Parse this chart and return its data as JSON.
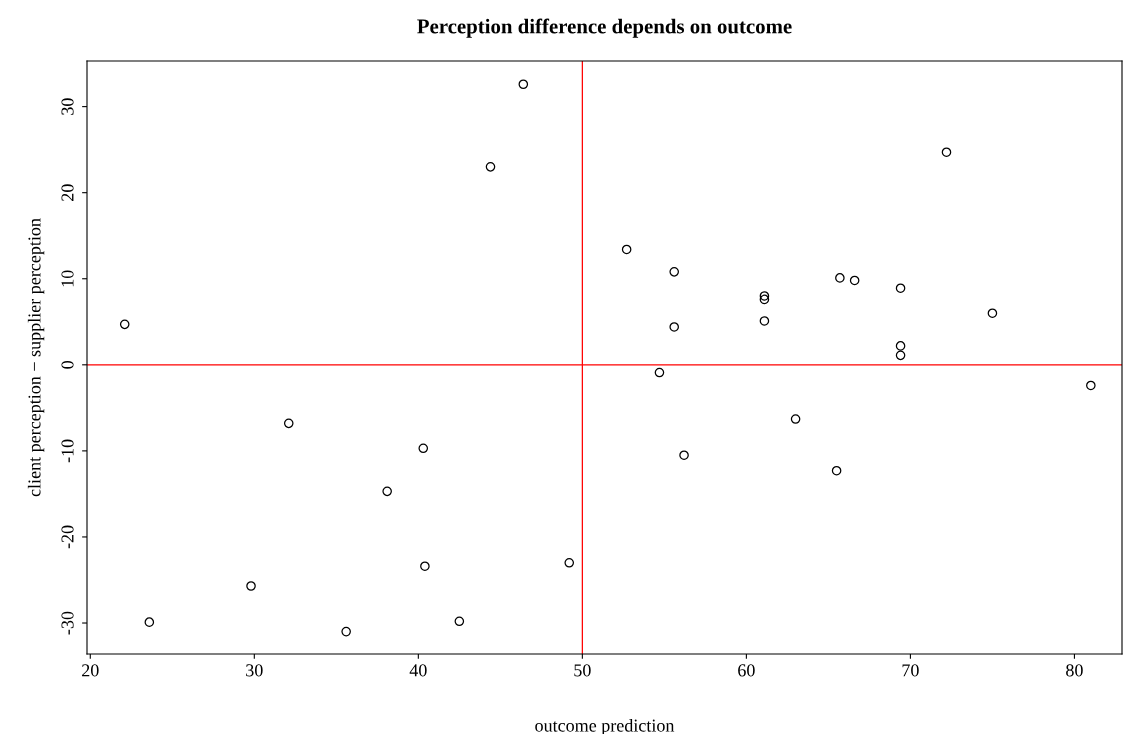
{
  "chart_data": {
    "type": "scatter",
    "title": "Perception difference depends on outcome",
    "xlabel": "outcome prediction",
    "ylabel": "client perception − supplier perception",
    "x": [
      22.1,
      23.6,
      29.8,
      32.1,
      35.6,
      38.1,
      40.3,
      40.4,
      42.5,
      44.4,
      46.4,
      49.2,
      52.7,
      54.7,
      55.6,
      55.6,
      56.2,
      61.1,
      61.1,
      61.1,
      63.0,
      65.5,
      65.7,
      66.6,
      69.4,
      69.4,
      69.4,
      72.2,
      75.0,
      81.0
    ],
    "values": [
      4.7,
      -29.9,
      -25.7,
      -6.8,
      -31.0,
      -14.7,
      -9.7,
      -23.4,
      -29.8,
      23.0,
      32.6,
      -23.0,
      13.4,
      -0.9,
      10.8,
      4.4,
      -10.5,
      8.0,
      7.6,
      5.1,
      -6.3,
      -12.3,
      10.1,
      9.8,
      8.9,
      2.2,
      1.1,
      24.7,
      6.0,
      -2.4
    ],
    "color": "#000000",
    "marker": "circle",
    "grid": false,
    "legend": false,
    "xlim": [
      19.8,
      82.9
    ],
    "ylim": [
      -33.6,
      35.3
    ],
    "xticks": [
      20,
      30,
      40,
      50,
      60,
      70,
      80
    ],
    "yticks": [
      -30,
      -20,
      -10,
      0,
      10,
      20,
      30
    ],
    "ref_lines": [
      {
        "axis": "x",
        "value": 50,
        "label": null,
        "color": "#ff0000"
      },
      {
        "axis": "y",
        "value": 0,
        "label": null,
        "color": "#ff0000"
      }
    ]
  }
}
